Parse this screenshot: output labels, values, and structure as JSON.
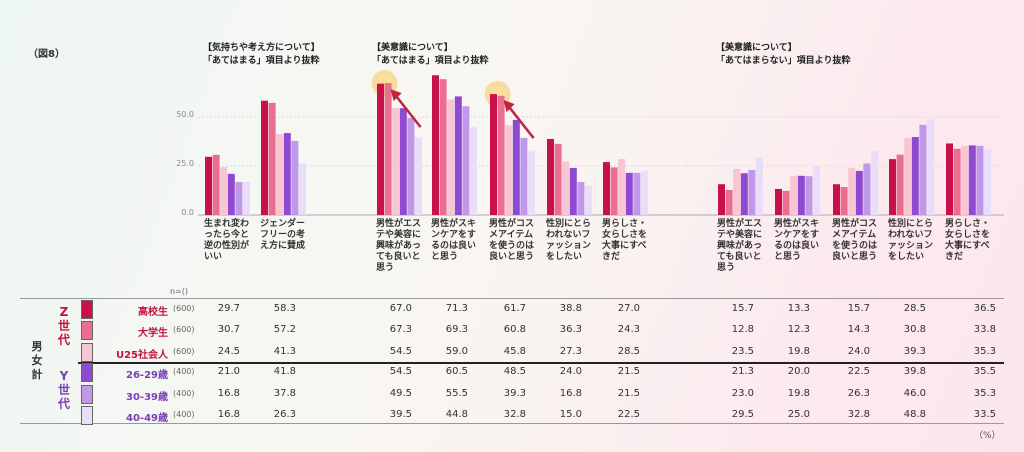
{
  "figure_label": "（図8）",
  "unit": "（%）",
  "n_label": "n=()",
  "total_label": "男女計",
  "generations": [
    {
      "label": "Z世代",
      "color": "#c4123d"
    },
    {
      "label": "Y世代",
      "color": "#7a3fb5"
    }
  ],
  "colors": {
    "z_high": "#c8104a",
    "z_univ": "#ea6f8e",
    "z_u25": "#f8c6d2",
    "y_26": "#8e4bd1",
    "y_30": "#bf98ea",
    "y_40": "#e9defa",
    "highlight": "#f7c55a",
    "arrow": "#c0233f"
  },
  "chart_data": {
    "type": "bar",
    "y_ticks": [
      "0.0",
      "25.0",
      "50.0"
    ],
    "ylim": [
      0,
      75
    ],
    "sections": [
      {
        "header": "【気持ちや考え方について】",
        "subheader": "「あてはまる」項目より抜粋"
      },
      {
        "header": "【美意識について】",
        "subheader": "「あてはまる」項目より抜粋"
      },
      {
        "header": "【美意識について】",
        "subheader": "「あてはまらない」項目より抜粋"
      }
    ],
    "series": [
      {
        "name": "高校生",
        "n": "(600)",
        "values": [
          29.7,
          58.3,
          67.0,
          71.3,
          61.7,
          38.8,
          27.0,
          15.7,
          13.3,
          15.7,
          28.5,
          36.5
        ],
        "value_labels": [
          "29.7",
          "58.3",
          "67.0",
          "71.3",
          "61.7",
          "38.8",
          "27.0",
          "15.7",
          "13.3",
          "15.7",
          "28.5",
          "36.5"
        ]
      },
      {
        "name": "大学生",
        "n": "(600)",
        "values": [
          30.7,
          57.2,
          67.3,
          69.3,
          60.8,
          36.3,
          24.3,
          12.8,
          12.3,
          14.3,
          30.8,
          33.8
        ],
        "value_labels": [
          "30.7",
          "57.2",
          "67.3",
          "69.3",
          "60.8",
          "36.3",
          "24.3",
          "12.8",
          "12.3",
          "14.3",
          "30.8",
          "33.8"
        ]
      },
      {
        "name": "U25社会人",
        "n": "(600)",
        "values": [
          24.5,
          41.3,
          54.5,
          59.0,
          45.8,
          27.3,
          28.5,
          23.5,
          19.8,
          24.0,
          39.3,
          35.3
        ],
        "value_labels": [
          "24.5",
          "41.3",
          "54.5",
          "59.0",
          "45.8",
          "27.3",
          "28.5",
          "23.5",
          "19.8",
          "24.0",
          "39.3",
          "35.3"
        ]
      },
      {
        "name": "26-29歳",
        "n": "(400)",
        "values": [
          21.0,
          41.8,
          54.5,
          60.5,
          48.5,
          24.0,
          21.5,
          21.3,
          20.0,
          22.5,
          39.8,
          35.5
        ],
        "value_labels": [
          "21.0",
          "41.8",
          "54.5",
          "60.5",
          "48.5",
          "24.0",
          "21.5",
          "21.3",
          "20.0",
          "22.5",
          "39.8",
          "35.5"
        ]
      },
      {
        "name": "30-39歳",
        "n": "(400)",
        "values": [
          16.8,
          37.8,
          49.5,
          55.5,
          39.3,
          16.8,
          21.5,
          23.0,
          19.8,
          26.3,
          46.0,
          35.3
        ],
        "value_labels": [
          "16.8",
          "37.8",
          "49.5",
          "55.5",
          "39.3",
          "16.8",
          "21.5",
          "23.0",
          "19.8",
          "26.3",
          "46.0",
          "35.3"
        ]
      },
      {
        "name": "40-49歳",
        "n": "(400)",
        "values": [
          16.8,
          26.3,
          39.5,
          44.8,
          32.8,
          15.0,
          22.5,
          29.5,
          25.0,
          32.8,
          48.8,
          33.5
        ],
        "value_labels": [
          "16.8",
          "26.3",
          "39.5",
          "44.8",
          "32.8",
          "15.0",
          "22.5",
          "29.5",
          "25.0",
          "32.8",
          "48.8",
          "33.5"
        ]
      }
    ],
    "categories": [
      "生まれ変わったら今と逆の性別がいい",
      "ジェンダーフリーの考え方に賛成",
      "男性がエステや美容に興味があっても良いと思う",
      "男性がスキンケアをするのは良いと思う",
      "男性がコスメアイテムを使うのは良いと思う",
      "性別にとらわれないファッションをしたい",
      "男らしさ・女らしさを大事にすべきだ",
      "男性がエステや美容に興味があっても良いと思う",
      "男性がスキンケアをするのは良いと思う",
      "男性がコスメアイテムを使うのは良いと思う",
      "性別にとらわれないファッションをしたい",
      "男らしさ・女らしさを大事にすべきだ"
    ],
    "highlighted_categories": [
      2,
      4
    ]
  }
}
